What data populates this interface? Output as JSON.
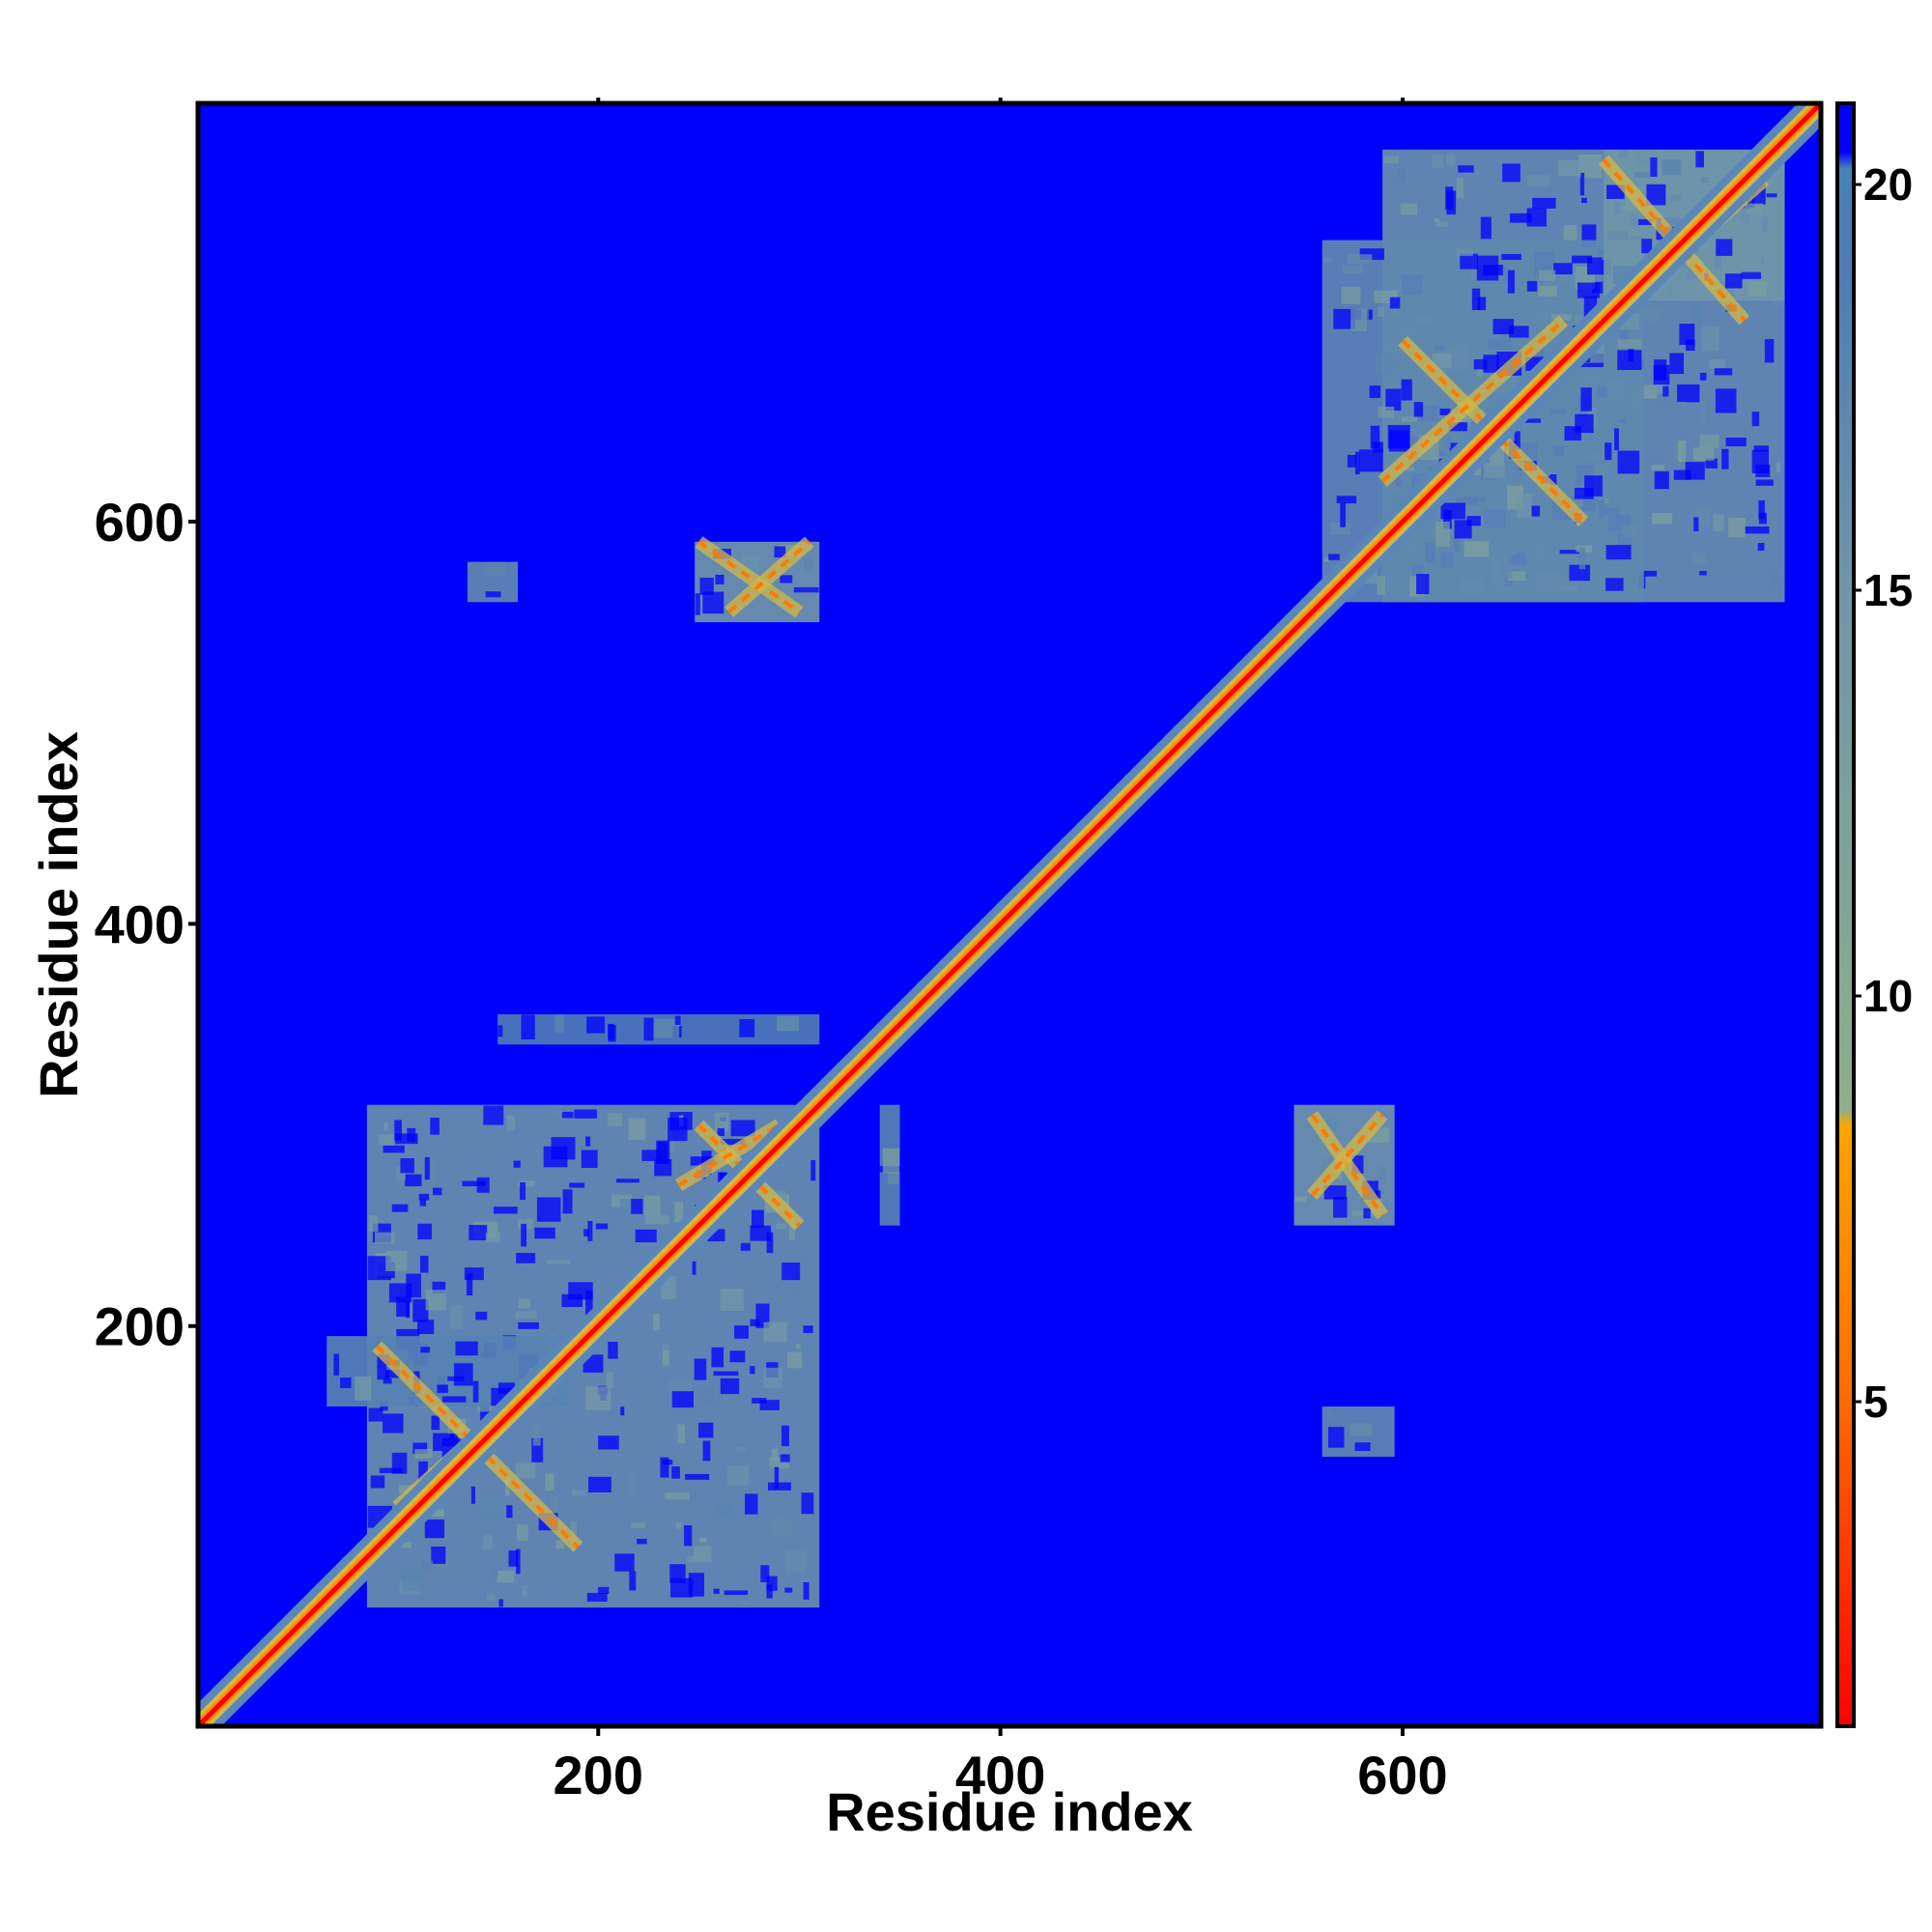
{
  "chart_data": {
    "type": "heatmap",
    "title": "",
    "xlabel": "Residue index",
    "ylabel": "Residue index",
    "xlim": [
      1,
      808
    ],
    "ylim": [
      1,
      808
    ],
    "xticks": [
      200,
      400,
      600
    ],
    "yticks": [
      200,
      400,
      600
    ],
    "colorbar": {
      "range": [
        1,
        21
      ],
      "ticks": [
        5,
        10,
        15,
        20
      ],
      "stops": [
        {
          "value": 1,
          "color": "#ff0000"
        },
        {
          "value": 5,
          "color": "#ff6a00"
        },
        {
          "value": 8.4,
          "color": "#ffa500"
        },
        {
          "value": 8.6,
          "color": "#8fae8c"
        },
        {
          "value": 15,
          "color": "#6f96a8"
        },
        {
          "value": 19,
          "color": "#4f7bb5"
        },
        {
          "value": 20.2,
          "color": "#4682b4"
        },
        {
          "value": 20.4,
          "color": "#0000ff"
        },
        {
          "value": 21,
          "color": "#0000ff"
        }
      ]
    },
    "background_color": "#0000ff",
    "diagonal_color": "#ff0000",
    "near_contact_color": "#d2b84a",
    "far_contact_color": "#5b86b8",
    "contact_blocks": [
      {
        "x": [
          85,
          310
        ],
        "y": [
          60,
          310
        ],
        "level": 16
      },
      {
        "x": [
          65,
          185
        ],
        "y": [
          160,
          195
        ],
        "level": 18
      },
      {
        "x": [
          590,
          790
        ],
        "y": [
          560,
          785
        ],
        "level": 16
      },
      {
        "x": [
          560,
          720
        ],
        "y": [
          560,
          740
        ],
        "level": 17
      },
      {
        "x": [
          700,
          790
        ],
        "y": [
          710,
          785
        ],
        "level": 15
      },
      {
        "x": [
          248,
          310
        ],
        "y": [
          550,
          590
        ],
        "level": 15
      },
      {
        "x": [
          546,
          596
        ],
        "y": [
          250,
          310
        ],
        "level": 15
      },
      {
        "x": [
          135,
          160
        ],
        "y": [
          560,
          580
        ],
        "level": 17
      },
      {
        "x": [
          560,
          596
        ],
        "y": [
          135,
          160
        ],
        "level": 17
      },
      {
        "x": [
          340,
          350
        ],
        "y": [
          250,
          310
        ],
        "level": 18
      },
      {
        "x": [
          150,
          310
        ],
        "y": [
          340,
          355
        ],
        "level": 19
      }
    ],
    "contact_lines": [
      {
        "x1": 250,
        "y1": 590,
        "x2": 300,
        "y2": 555
      },
      {
        "x1": 265,
        "y1": 555,
        "x2": 305,
        "y2": 590
      },
      {
        "x1": 555,
        "y1": 305,
        "x2": 590,
        "y2": 255
      },
      {
        "x1": 555,
        "y1": 265,
        "x2": 590,
        "y2": 305
      },
      {
        "x1": 700,
        "y1": 780,
        "x2": 770,
        "y2": 700
      },
      {
        "x1": 700,
        "y1": 700,
        "x2": 780,
        "y2": 770
      },
      {
        "x1": 600,
        "y1": 690,
        "x2": 690,
        "y2": 600
      },
      {
        "x1": 590,
        "y1": 620,
        "x2": 680,
        "y2": 700
      },
      {
        "x1": 90,
        "y1": 190,
        "x2": 190,
        "y2": 90
      },
      {
        "x1": 100,
        "y1": 110,
        "x2": 200,
        "y2": 200
      },
      {
        "x1": 250,
        "y1": 300,
        "x2": 300,
        "y2": 250
      },
      {
        "x1": 240,
        "y1": 270,
        "x2": 290,
        "y2": 300
      }
    ]
  }
}
